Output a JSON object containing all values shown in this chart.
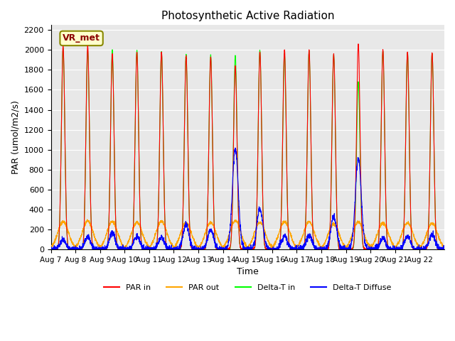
{
  "title": "Photosynthetic Active Radiation",
  "xlabel": "Time",
  "ylabel": "PAR (umol/m2/s)",
  "ylim": [
    0,
    2250
  ],
  "yticks": [
    0,
    200,
    400,
    600,
    800,
    1000,
    1200,
    1400,
    1600,
    1800,
    2000,
    2200
  ],
  "xtick_labels": [
    "Aug 7",
    "Aug 8",
    "Aug 9",
    "Aug 10",
    "Aug 11",
    "Aug 12",
    "Aug 13",
    "Aug 14",
    "Aug 15",
    "Aug 16",
    "Aug 17",
    "Aug 18",
    "Aug 19",
    "Aug 20",
    "Aug 21",
    "Aug 22"
  ],
  "legend_labels": [
    "PAR in",
    "PAR out",
    "Delta-T in",
    "Delta-T Diffuse"
  ],
  "legend_colors": [
    "red",
    "orange",
    "lime",
    "blue"
  ],
  "annotation_text": "VR_met",
  "annotation_bg": "#ffffcc",
  "annotation_border": "#888800",
  "background_color": "#e8e8e8",
  "n_days": 16,
  "par_in_peaks": [
    2040,
    2040,
    1960,
    1980,
    1980,
    1940,
    1930,
    1840,
    1980,
    2000,
    2000,
    1960,
    2060,
    2000,
    1980,
    1970
  ],
  "par_out_peaks": [
    275,
    285,
    275,
    270,
    280,
    265,
    270,
    285,
    270,
    275,
    275,
    255,
    275,
    265,
    265,
    260
  ],
  "delta_t_peaks": [
    2010,
    1990,
    2000,
    2000,
    1980,
    1950,
    1950,
    1950,
    2000,
    1960,
    1980,
    1950,
    1680,
    1990,
    1970,
    1960
  ],
  "delta_t_diff_peaks": [
    95,
    120,
    165,
    130,
    120,
    250,
    200,
    1010,
    415,
    130,
    135,
    330,
    910,
    110,
    130,
    145
  ]
}
